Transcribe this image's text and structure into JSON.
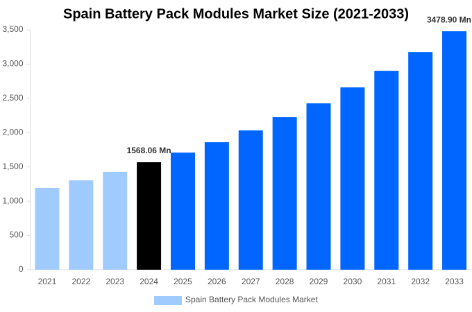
{
  "chart_data": {
    "type": "bar",
    "title": "Spain Battery Pack Modules Market Size (2021-2033)",
    "categories": [
      "2021",
      "2022",
      "2023",
      "2024",
      "2025",
      "2026",
      "2027",
      "2028",
      "2029",
      "2030",
      "2031",
      "2032",
      "2033"
    ],
    "series": [
      {
        "name": "Spain Battery Pack Modules Market",
        "color": "#a0cbff",
        "values": [
          1193,
          1304,
          1426,
          1568.06,
          1709,
          1860,
          2032,
          2225,
          2427,
          2660,
          2902,
          3175,
          3478.9
        ],
        "colors": [
          "#a0cbff",
          "#a0cbff",
          "#a0cbff",
          "#000000",
          "#0066ff",
          "#0066ff",
          "#0066ff",
          "#0066ff",
          "#0066ff",
          "#0066ff",
          "#0066ff",
          "#0066ff",
          "#0066ff"
        ],
        "value_labels": [
          null,
          null,
          null,
          "1568.06 Mn",
          null,
          null,
          null,
          null,
          null,
          null,
          null,
          null,
          "3478.90 Mn"
        ]
      }
    ],
    "ylim": [
      0,
      3500
    ],
    "yticks": [
      0,
      500,
      {
        "value": 1000,
        "label": "1,000"
      },
      {
        "value": 1500,
        "label": "1,500"
      },
      {
        "value": 2000,
        "label": "2,000"
      },
      {
        "value": 2500,
        "label": "2,500"
      },
      {
        "value": 3000,
        "label": "3,000"
      },
      {
        "value": 3500,
        "label": "3,500"
      }
    ],
    "legend": "bottom"
  }
}
